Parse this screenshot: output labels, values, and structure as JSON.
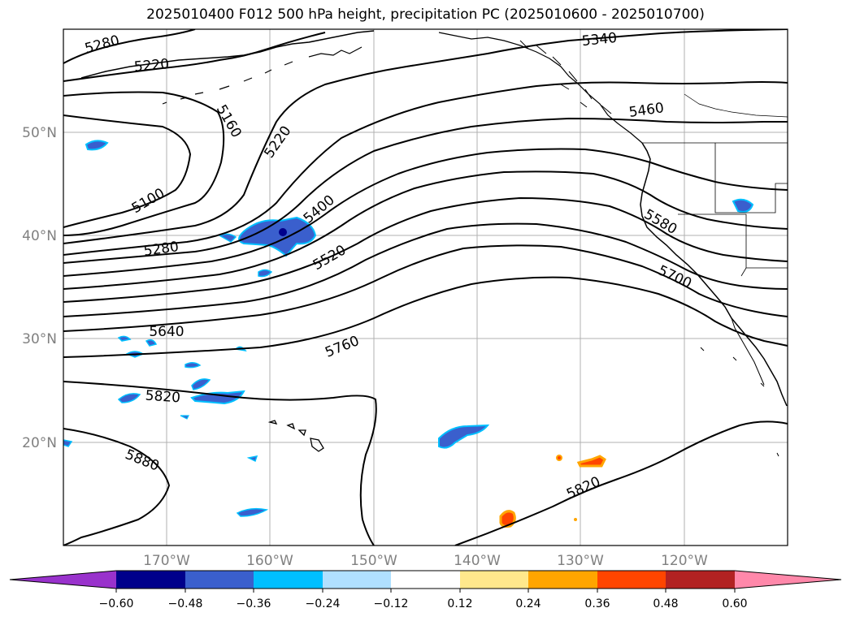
{
  "title": "2025010400 F012 500 hPa height, precipitation PC (2025010600 - 2025010700)",
  "lat_labels": [
    "50°N",
    "40°N",
    "30°N",
    "20°N"
  ],
  "lon_labels": [
    "170°W",
    "160°W",
    "150°W",
    "140°W",
    "130°W",
    "120°W"
  ],
  "contour_labels": [
    "5280",
    "5220",
    "5340",
    "5160",
    "5460",
    "5220",
    "5100",
    "5400",
    "5580",
    "5280",
    "5520",
    "5700",
    "5640",
    "5760",
    "5820",
    "5880",
    "5820"
  ],
  "colorbar": {
    "colors": [
      "#9932cc",
      "#00008b",
      "#3a5fcd",
      "#00bfff",
      "#b0e0ff",
      "#ffffff",
      "#ffe88c",
      "#ffa500",
      "#ff4500",
      "#b22222",
      "#ff88aa"
    ],
    "ticks": [
      "−0.60",
      "−0.48",
      "−0.36",
      "−0.24",
      "−0.12",
      "0.12",
      "0.24",
      "0.36",
      "0.48",
      "0.60"
    ]
  }
}
